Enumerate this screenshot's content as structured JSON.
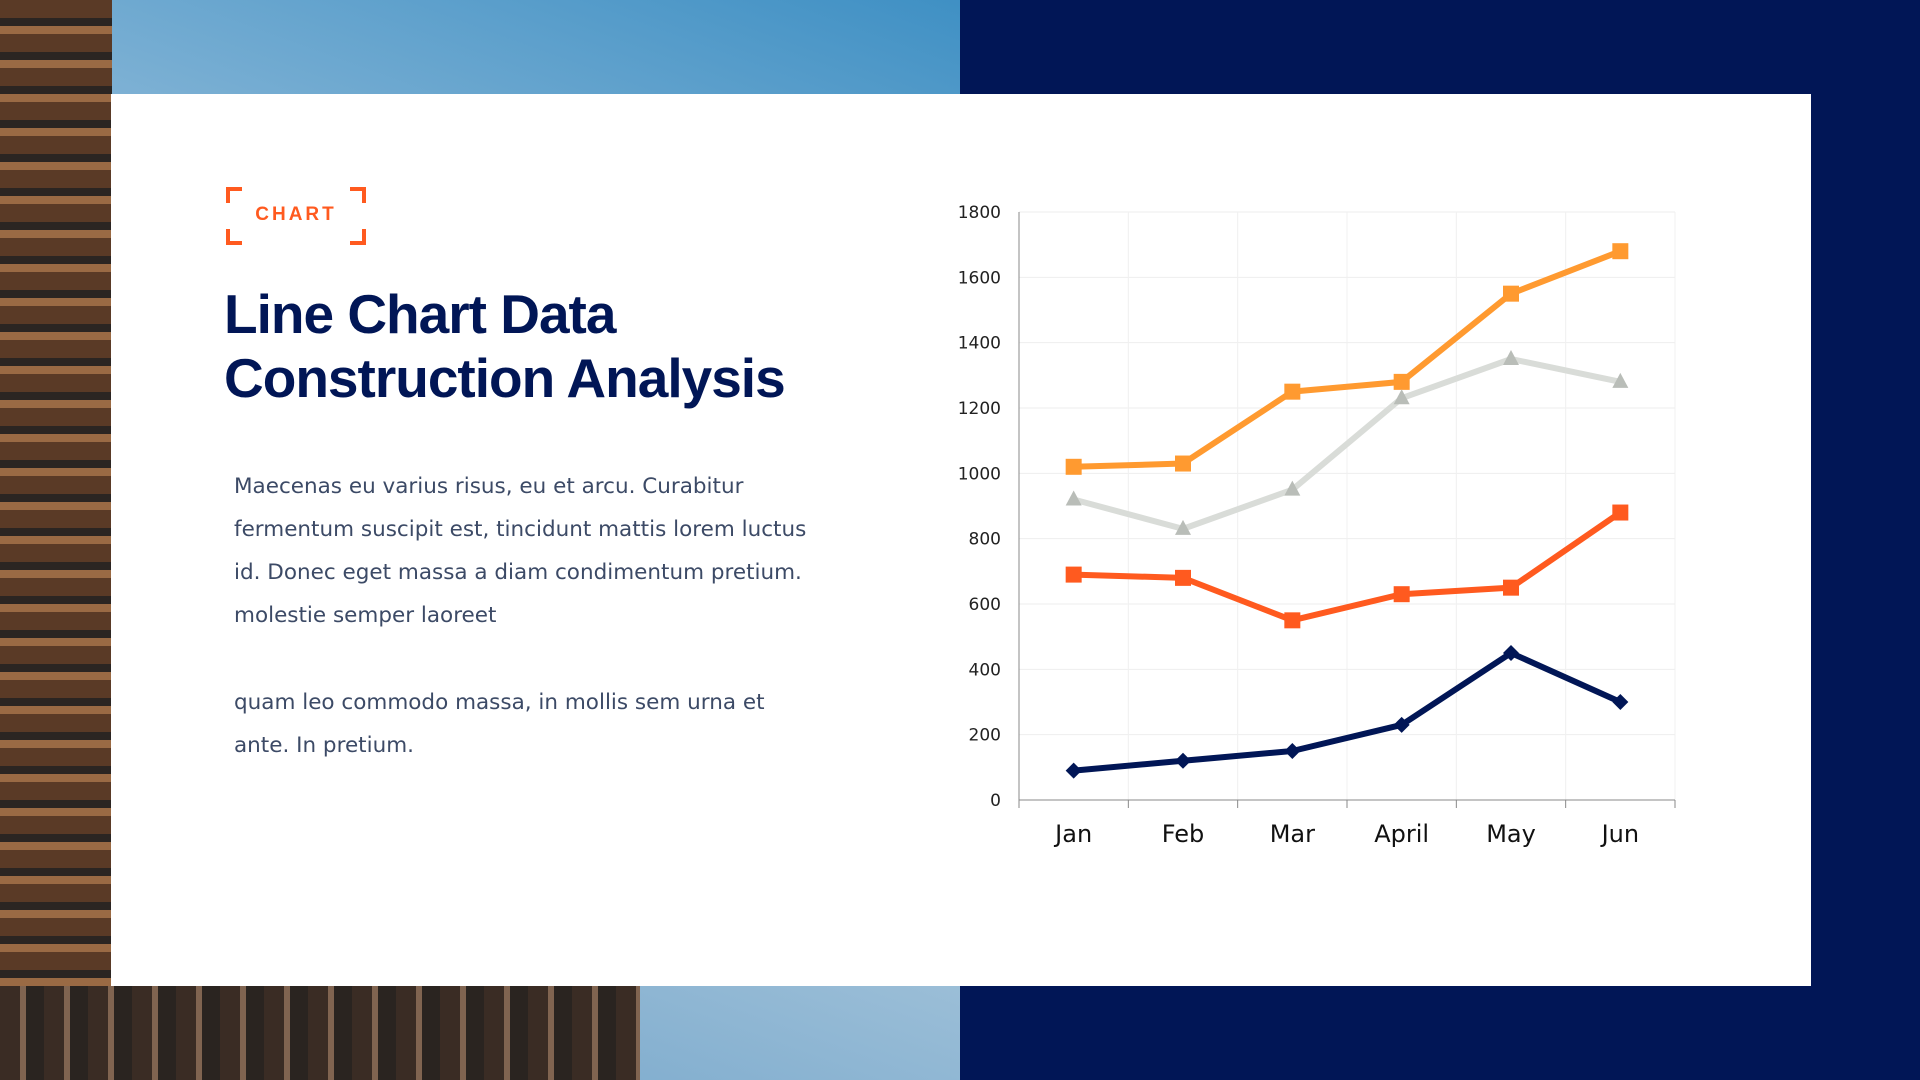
{
  "tag": "CHART",
  "title_line1": "Line Chart Data",
  "title_line2": "Construction Analysis",
  "paragraph1": "Maecenas eu varius risus, eu et arcu. Curabitur fermentum suscipit est, tincidunt mattis lorem luctus id. Donec eget massa a diam condimentum pretium. molestie semper laoreet",
  "paragraph2": "quam leo commodo massa, in mollis sem urna et ante. In pretium.",
  "colors": {
    "navy": "#011656",
    "orange": "#ff5a1f",
    "light_orange": "#ff9a30",
    "gray": "#d9dcd8"
  },
  "chart_data": {
    "type": "line",
    "categories": [
      "Jan",
      "Feb",
      "Mar",
      "April",
      "May",
      "Jun"
    ],
    "ylim": [
      0,
      1800
    ],
    "yticks": [
      0,
      200,
      400,
      600,
      800,
      1000,
      1200,
      1400,
      1600,
      1800
    ],
    "grid": true,
    "series": [
      {
        "values": [
          1020,
          1030,
          1250,
          1280,
          1550,
          1680
        ],
        "color": "#ff9a30",
        "marker": "square"
      },
      {
        "values": [
          920,
          830,
          950,
          1230,
          1350,
          1280
        ],
        "color": "#d9dcd8",
        "marker": "triangle"
      },
      {
        "values": [
          690,
          680,
          550,
          630,
          650,
          880
        ],
        "color": "#ff5a1f",
        "marker": "square"
      },
      {
        "values": [
          90,
          120,
          150,
          230,
          450,
          300
        ],
        "color": "#011656",
        "marker": "diamond"
      }
    ]
  }
}
